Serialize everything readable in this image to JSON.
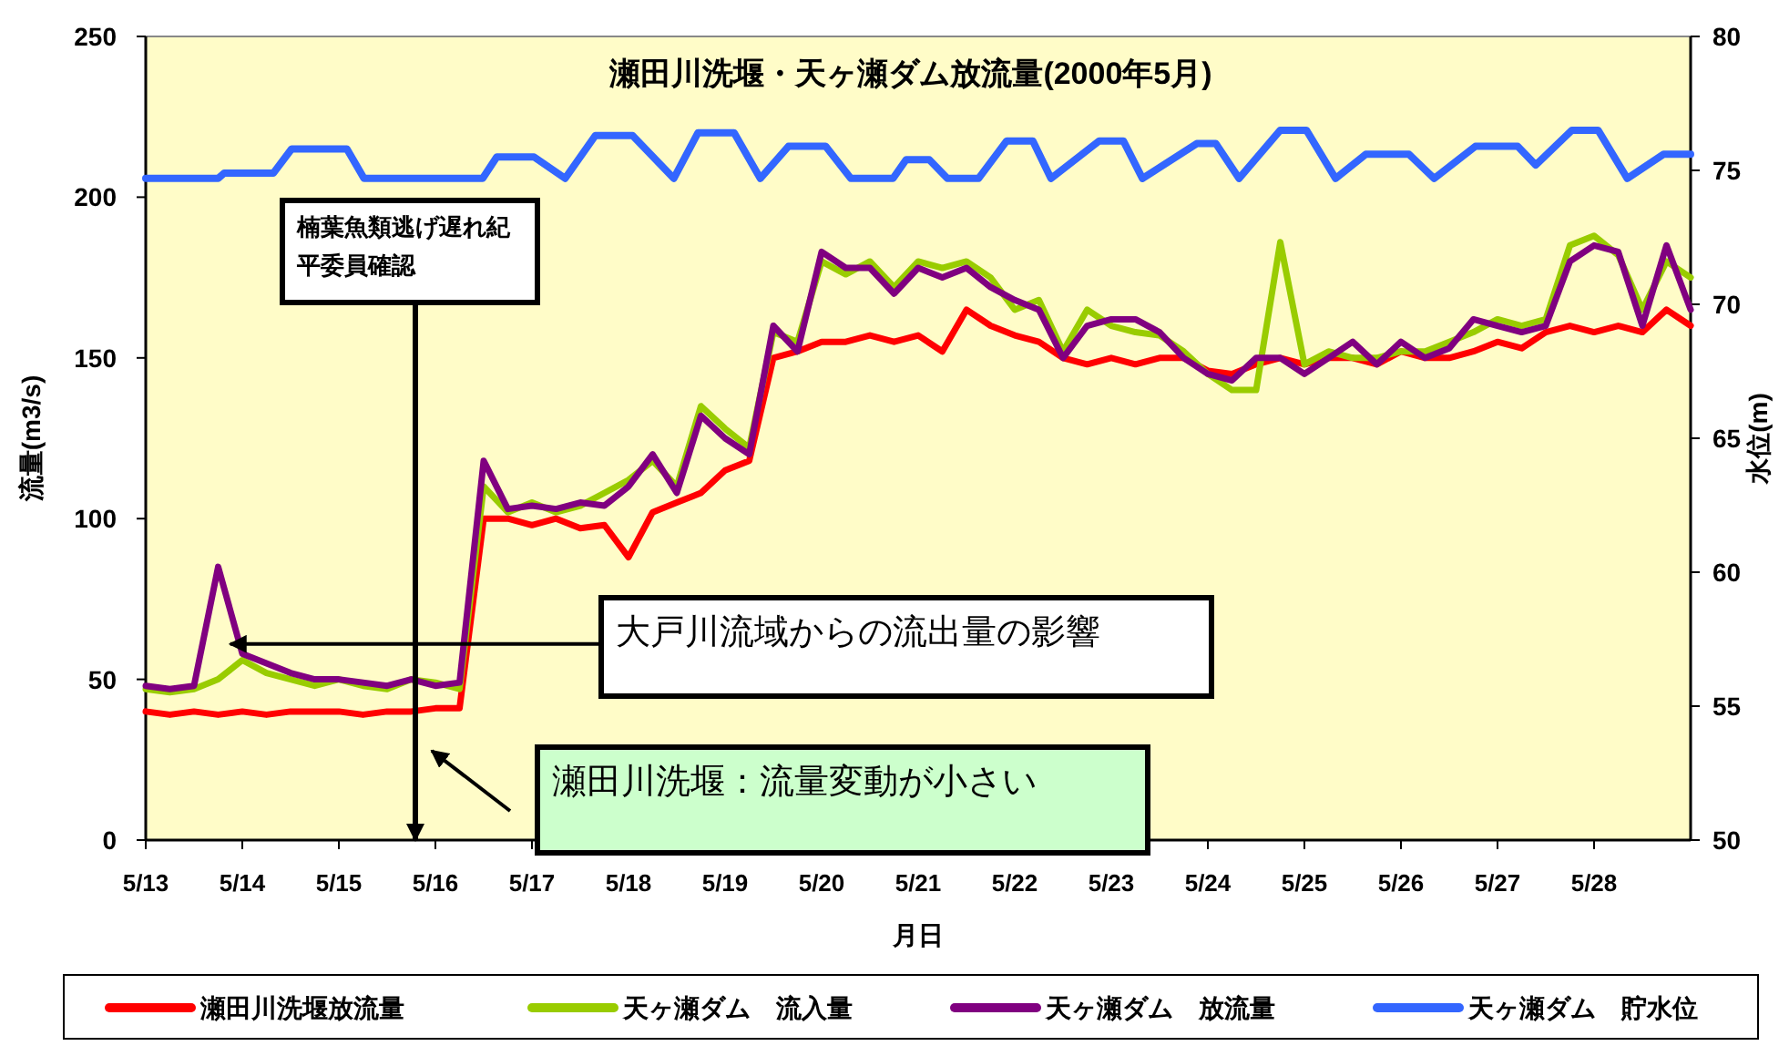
{
  "chart_data": {
    "type": "line",
    "title": "瀬田川洗堰・天ヶ瀬ダム放流量(2000年5月)",
    "xlabel": "月日",
    "ylabel": "流量(m3/s)",
    "y2label": "水位(m)",
    "x": [
      "2000-05-13T00:00",
      "2000-05-13T06:00",
      "2000-05-13T12:00",
      "2000-05-13T18:00",
      "2000-05-14T00:00",
      "2000-05-14T06:00",
      "2000-05-14T12:00",
      "2000-05-14T18:00",
      "2000-05-15T00:00",
      "2000-05-15T06:00",
      "2000-05-15T12:00",
      "2000-05-15T18:00",
      "2000-05-16T00:00",
      "2000-05-16T06:00",
      "2000-05-16T12:00",
      "2000-05-16T18:00",
      "2000-05-17T00:00",
      "2000-05-17T06:00",
      "2000-05-17T12:00",
      "2000-05-17T18:00",
      "2000-05-18T00:00",
      "2000-05-18T06:00",
      "2000-05-18T12:00",
      "2000-05-18T18:00",
      "2000-05-19T00:00",
      "2000-05-19T06:00",
      "2000-05-19T12:00",
      "2000-05-19T18:00",
      "2000-05-20T00:00",
      "2000-05-20T06:00",
      "2000-05-20T12:00",
      "2000-05-20T18:00",
      "2000-05-21T00:00",
      "2000-05-21T06:00",
      "2000-05-21T12:00",
      "2000-05-21T18:00",
      "2000-05-22T00:00",
      "2000-05-22T06:00",
      "2000-05-22T12:00",
      "2000-05-22T18:00",
      "2000-05-23T00:00",
      "2000-05-23T06:00",
      "2000-05-23T12:00",
      "2000-05-23T18:00",
      "2000-05-24T00:00",
      "2000-05-24T06:00",
      "2000-05-24T12:00",
      "2000-05-24T18:00",
      "2000-05-25T00:00",
      "2000-05-25T06:00",
      "2000-05-25T12:00",
      "2000-05-25T18:00",
      "2000-05-26T00:00",
      "2000-05-26T06:00",
      "2000-05-26T12:00",
      "2000-05-26T18:00",
      "2000-05-27T00:00",
      "2000-05-27T06:00",
      "2000-05-27T12:00",
      "2000-05-27T18:00",
      "2000-05-28T00:00",
      "2000-05-28T06:00",
      "2000-05-28T12:00",
      "2000-05-28T18:00",
      "2000-05-29T00:00"
    ],
    "xlim": [
      "2000-05-13",
      "2000-05-29"
    ],
    "xticks": [
      {
        "value": "2000-05-13",
        "label": "5/13"
      },
      {
        "value": "2000-05-14",
        "label": "5/14"
      },
      {
        "value": "2000-05-15",
        "label": "5/15"
      },
      {
        "value": "2000-05-16",
        "label": "5/16"
      },
      {
        "value": "2000-05-17",
        "label": "5/17"
      },
      {
        "value": "2000-05-18",
        "label": "5/18"
      },
      {
        "value": "2000-05-19",
        "label": "5/19"
      },
      {
        "value": "2000-05-20",
        "label": "5/20"
      },
      {
        "value": "2000-05-21",
        "label": "5/21"
      },
      {
        "value": "2000-05-22",
        "label": "5/22"
      },
      {
        "value": "2000-05-23",
        "label": "5/23"
      },
      {
        "value": "2000-05-24",
        "label": "5/24"
      },
      {
        "value": "2000-05-25",
        "label": "5/25"
      },
      {
        "value": "2000-05-26",
        "label": "5/26"
      },
      {
        "value": "2000-05-27",
        "label": "5/27"
      },
      {
        "value": "2000-05-28",
        "label": "5/28"
      }
    ],
    "ylim": [
      0,
      250
    ],
    "yticks": [
      0,
      50,
      100,
      150,
      200,
      250
    ],
    "y2lim": [
      50,
      80
    ],
    "y2ticks": [
      50,
      55,
      60,
      65,
      70,
      75,
      80
    ],
    "grid": false,
    "legend": "bottom",
    "marker": "none",
    "line_style": "solid",
    "series": [
      {
        "name": "瀬田川洗堰放流量",
        "color": "#ff0000",
        "values": [
          40,
          39,
          40,
          39,
          40,
          39,
          40,
          40,
          40,
          39,
          40,
          40,
          41,
          41,
          100,
          100,
          98,
          100,
          97,
          98,
          88,
          102,
          105,
          108,
          115,
          118,
          150,
          152,
          155,
          155,
          157,
          155,
          157,
          152,
          165,
          160,
          157,
          155,
          150,
          148,
          150,
          148,
          150,
          150,
          146,
          145,
          148,
          150,
          148,
          150,
          150,
          148,
          152,
          150,
          150,
          152,
          155,
          153,
          158,
          160,
          158,
          160,
          158,
          165,
          160
        ]
      },
      {
        "name": "天ヶ瀬ダム　流入量",
        "color": "#99cc00",
        "values": [
          47,
          46,
          47,
          50,
          56,
          52,
          50,
          48,
          50,
          48,
          47,
          50,
          49,
          47,
          110,
          102,
          105,
          102,
          104,
          108,
          112,
          118,
          110,
          135,
          128,
          122,
          158,
          155,
          180,
          176,
          180,
          172,
          180,
          178,
          180,
          175,
          165,
          168,
          152,
          165,
          160,
          158,
          157,
          152,
          145,
          140,
          140,
          186,
          148,
          152,
          150,
          150,
          152,
          152,
          155,
          158,
          162,
          160,
          162,
          185,
          188,
          182,
          165,
          180,
          175
        ]
      },
      {
        "name": "天ヶ瀬ダム　放流量",
        "color": "#800080",
        "values": [
          48,
          47,
          48,
          85,
          58,
          55,
          52,
          50,
          50,
          49,
          48,
          50,
          48,
          49,
          118,
          103,
          104,
          103,
          105,
          104,
          110,
          120,
          108,
          132,
          125,
          120,
          160,
          152,
          183,
          178,
          178,
          170,
          178,
          175,
          178,
          172,
          168,
          165,
          150,
          160,
          162,
          162,
          158,
          150,
          145,
          143,
          150,
          150,
          145,
          150,
          155,
          148,
          155,
          150,
          153,
          162,
          160,
          158,
          160,
          180,
          185,
          183,
          160,
          185,
          165
        ]
      },
      {
        "name": "天ヶ瀬ダム　貯水位",
        "color": "#3366ff",
        "axis": "y2",
        "x": [
          "2000-05-13T00:00",
          "2000-05-13T18:00",
          "2000-05-13T19:30",
          "2000-05-14T07:45",
          "2000-05-14T12:15",
          "2000-05-15T02:00",
          "2000-05-15T06:15",
          "2000-05-16T11:45",
          "2000-05-16T15:15",
          "2000-05-17T00:30",
          "2000-05-17T08:15",
          "2000-05-17T15:45",
          "2000-05-18T01:00",
          "2000-05-18T11:15",
          "2000-05-18T17:15",
          "2000-05-19T02:15",
          "2000-05-19T08:45",
          "2000-05-19T15:45",
          "2000-05-20T01:00",
          "2000-05-20T07:15",
          "2000-05-20T17:45",
          "2000-05-20T21:00",
          "2000-05-21T02:45",
          "2000-05-21T07:15",
          "2000-05-21T15:00",
          "2000-05-21T22:00",
          "2000-05-22T04:30",
          "2000-05-22T09:00",
          "2000-05-22T21:00",
          "2000-05-23T03:00",
          "2000-05-23T07:45",
          "2000-05-23T21:15",
          "2000-05-24T02:00",
          "2000-05-24T07:45",
          "2000-05-24T18:00",
          "2000-05-25T00:30",
          "2000-05-25T07:45",
          "2000-05-25T15:15",
          "2000-05-26T02:00",
          "2000-05-26T08:15",
          "2000-05-26T18:30",
          "2000-05-27T05:00",
          "2000-05-27T09:30",
          "2000-05-27T18:30",
          "2000-05-28T01:00",
          "2000-05-28T08:15",
          "2000-05-28T17:15",
          "2000-05-29T00:00"
        ],
        "values": [
          74.7,
          74.7,
          74.9,
          74.9,
          75.8,
          75.8,
          74.7,
          74.7,
          75.5,
          75.5,
          74.7,
          76.3,
          76.3,
          74.7,
          76.4,
          76.4,
          74.7,
          75.9,
          75.9,
          74.7,
          74.7,
          75.4,
          75.4,
          74.7,
          74.7,
          76.1,
          76.1,
          74.7,
          76.1,
          76.1,
          74.7,
          76,
          76,
          74.7,
          76.5,
          76.5,
          74.7,
          75.6,
          75.6,
          74.7,
          75.9,
          75.9,
          75.2,
          76.5,
          76.5,
          74.7,
          75.6,
          75.6
        ]
      }
    ],
    "annotations": [
      "楠葉魚類逃げ遅れ紀平委員確認",
      {
        "text": "大戸川流域からの流出量の影響",
        "x": "2000-05-13T21:00",
        "y": 61
      },
      "瀬田川洗堰：流量変動が小さい"
    ]
  }
}
